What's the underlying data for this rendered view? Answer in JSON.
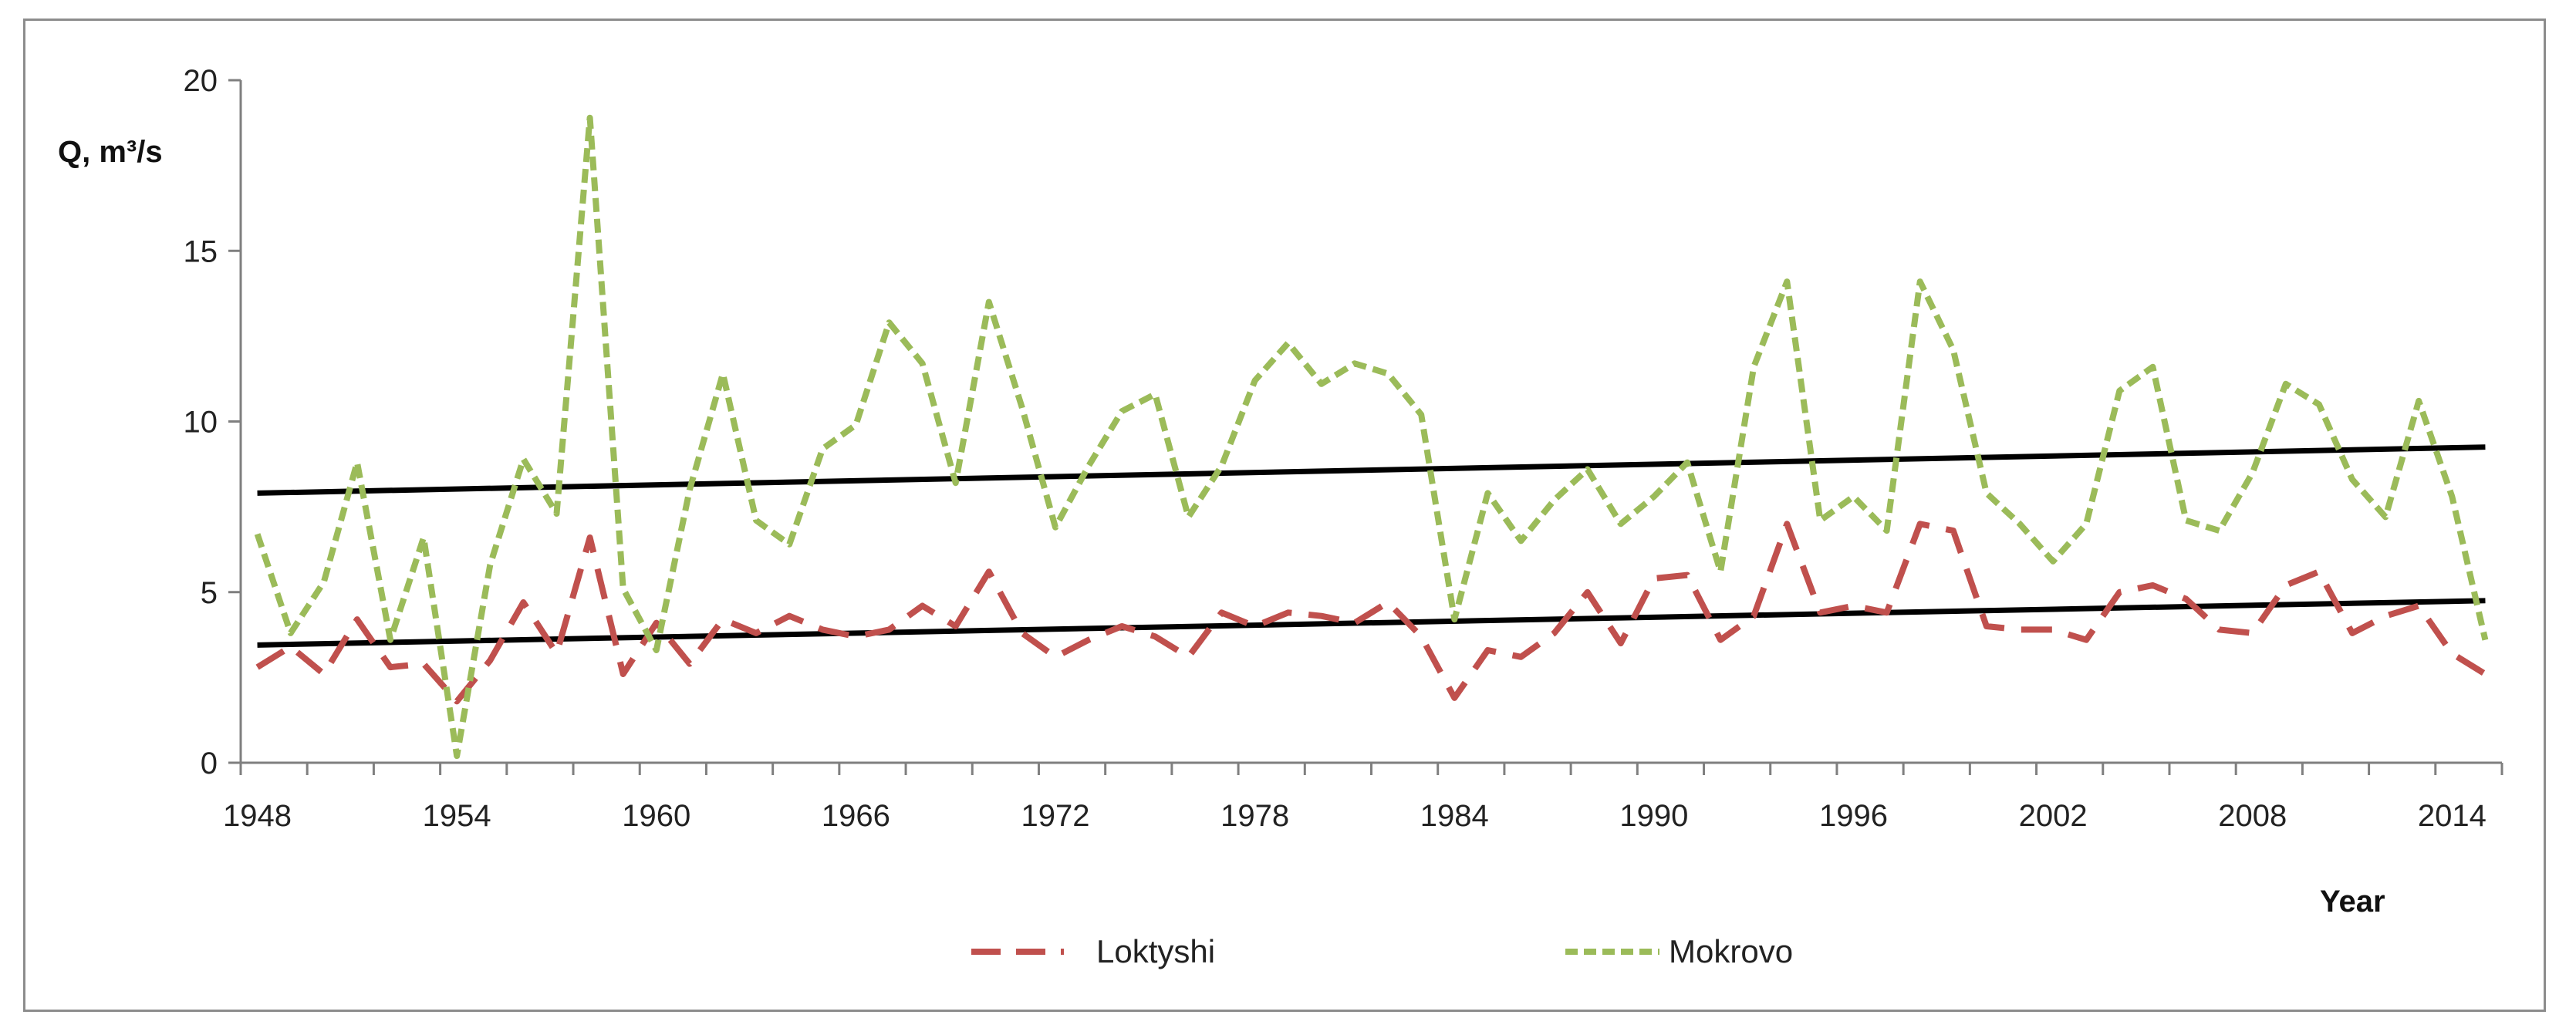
{
  "chart_data": {
    "type": "line",
    "title": "",
    "ylabel": "Q, m³/s",
    "xlabel": "Year",
    "ylim": [
      0,
      20
    ],
    "xlim": [
      1947.5,
      2015.5
    ],
    "yticks": [
      0,
      5,
      10,
      15,
      20
    ],
    "xticks": [
      1948,
      1954,
      1960,
      1966,
      1972,
      1978,
      1984,
      1990,
      1996,
      2002,
      2008,
      2014
    ],
    "grid": false,
    "legend_position": "bottom",
    "x": [
      1948,
      1949,
      1950,
      1951,
      1952,
      1953,
      1954,
      1955,
      1956,
      1957,
      1958,
      1959,
      1960,
      1961,
      1962,
      1963,
      1964,
      1965,
      1966,
      1967,
      1968,
      1969,
      1970,
      1971,
      1972,
      1973,
      1974,
      1975,
      1976,
      1977,
      1978,
      1979,
      1980,
      1981,
      1982,
      1983,
      1984,
      1985,
      1986,
      1987,
      1988,
      1989,
      1990,
      1991,
      1992,
      1993,
      1994,
      1995,
      1996,
      1997,
      1998,
      1999,
      2000,
      2001,
      2002,
      2003,
      2004,
      2005,
      2006,
      2007,
      2008,
      2009,
      2010,
      2011,
      2012,
      2013,
      2014,
      2015
    ],
    "series": [
      {
        "name": "Loktyshi",
        "color": "#c0504d",
        "style": "long-dash",
        "values": [
          2.8,
          3.4,
          2.6,
          4.2,
          2.8,
          2.9,
          1.8,
          3.0,
          4.7,
          3.2,
          6.6,
          2.6,
          4.1,
          2.9,
          4.2,
          3.8,
          4.3,
          3.9,
          3.7,
          3.9,
          4.6,
          4.0,
          5.6,
          3.8,
          3.1,
          3.6,
          4.0,
          3.7,
          3.1,
          4.4,
          4.0,
          4.4,
          4.3,
          4.1,
          4.7,
          3.7,
          1.9,
          3.3,
          3.1,
          3.8,
          5.0,
          3.5,
          5.4,
          5.5,
          3.6,
          4.3,
          7.0,
          4.4,
          4.6,
          4.4,
          7.0,
          6.8,
          4.0,
          3.9,
          3.9,
          3.6,
          5.0,
          5.2,
          4.8,
          3.9,
          3.8,
          5.2,
          5.6,
          3.8,
          4.3,
          4.6,
          3.2,
          2.6
        ]
      },
      {
        "name": "Mokrovo",
        "color": "#9bbb59",
        "style": "short-dash",
        "values": [
          6.7,
          3.8,
          5.3,
          8.8,
          3.6,
          6.6,
          0.2,
          5.8,
          8.9,
          7.3,
          18.9,
          5.1,
          3.3,
          8.0,
          11.4,
          7.1,
          6.4,
          9.2,
          9.9,
          12.9,
          11.7,
          8.2,
          13.5,
          10.4,
          6.9,
          8.7,
          10.3,
          10.8,
          7.2,
          8.7,
          11.2,
          12.3,
          11.1,
          11.7,
          11.4,
          10.2,
          4.2,
          7.9,
          6.5,
          7.7,
          8.6,
          7.0,
          7.8,
          8.8,
          5.6,
          11.6,
          14.1,
          7.1,
          7.8,
          6.8,
          14.1,
          12.1,
          7.9,
          7.0,
          5.9,
          7.0,
          10.9,
          11.6,
          7.1,
          6.8,
          8.5,
          11.1,
          10.5,
          8.3,
          7.2,
          10.6,
          7.8,
          3.6
        ]
      }
    ],
    "trendlines": [
      {
        "for": "Mokrovo",
        "color": "#000000",
        "start": [
          1948,
          7.9
        ],
        "end": [
          2015,
          9.25
        ]
      },
      {
        "for": "Loktyshi",
        "color": "#000000",
        "start": [
          1948,
          3.45
        ],
        "end": [
          2015,
          4.75
        ]
      }
    ],
    "legend": [
      "Loktyshi",
      "Mokrovo"
    ]
  }
}
